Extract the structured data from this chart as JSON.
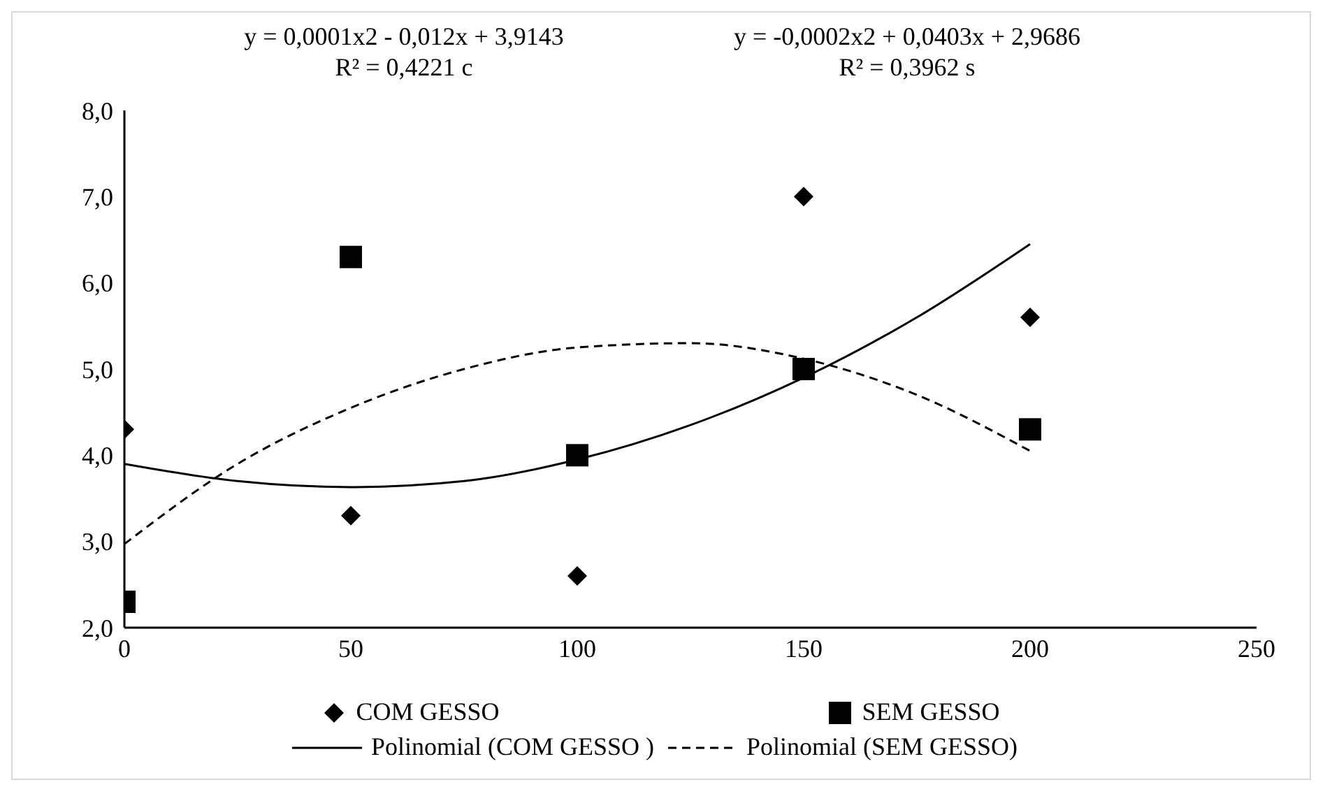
{
  "chart_data": {
    "type": "scatter",
    "annotations": [
      "y = 0,0001x2 - 0,012x + 3,9143\nR² = 0,4221 c",
      "y = -0,0002x2 + 0,0403x + 2,9686\nR² = 0,3962 s"
    ],
    "xlim": [
      0,
      250
    ],
    "xticks": [
      0,
      50,
      100,
      150,
      200,
      250
    ],
    "ylim": [
      2,
      8
    ],
    "yticks": [
      {
        "value": 2,
        "label": "2,0"
      },
      {
        "value": 3,
        "label": "3,0"
      },
      {
        "value": 4,
        "label": "4,0"
      },
      {
        "value": 5,
        "label": "5,0"
      },
      {
        "value": 6,
        "label": "6,0"
      },
      {
        "value": 7,
        "label": "7,0"
      },
      {
        "value": 8,
        "label": "8,0"
      }
    ],
    "grid": false,
    "legend": "bottom",
    "series": [
      {
        "name": "COM GESSO",
        "marker": "diamond",
        "color": "#000000",
        "x": [
          0,
          50,
          100,
          150,
          200
        ],
        "values": [
          4.3,
          3.3,
          2.6,
          7.0,
          5.6
        ]
      },
      {
        "name": "SEM GESSO",
        "marker": "square",
        "color": "#000000",
        "x": [
          0,
          50,
          100,
          150,
          200
        ],
        "values": [
          2.3,
          6.3,
          4.0,
          5.0,
          4.3
        ]
      },
      {
        "name": "Polinomial (COM GESSO )",
        "type": "line",
        "line_style": "solid",
        "color": "#000000",
        "x": [
          0,
          25,
          50,
          75,
          100,
          125,
          150,
          175,
          200
        ],
        "values": [
          3.9,
          3.7,
          3.63,
          3.7,
          3.95,
          4.35,
          4.9,
          5.6,
          6.45
        ]
      },
      {
        "name": "Polinomial (SEM GESSO)",
        "type": "line",
        "line_style": "dashed",
        "color": "#000000",
        "x": [
          0,
          25,
          50,
          75,
          100,
          125,
          150,
          175,
          200
        ],
        "values": [
          2.97,
          3.9,
          4.55,
          5.0,
          5.25,
          5.3,
          5.12,
          4.7,
          4.05
        ]
      }
    ]
  }
}
